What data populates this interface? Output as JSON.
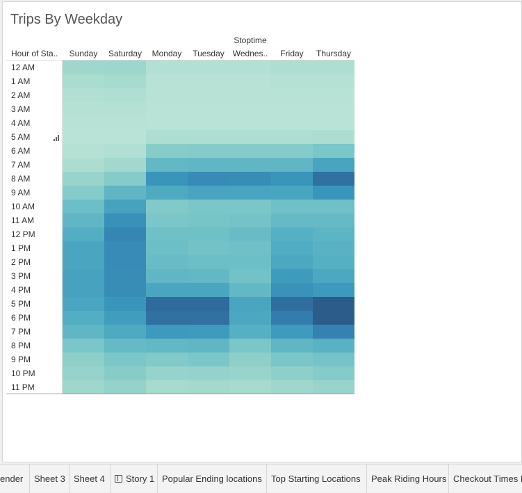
{
  "title": "Trips By Weekday",
  "colors": {
    "scale": [
      "#bce4d8",
      "#aadccf",
      "#8ecfca",
      "#6fc0c7",
      "#50acc2",
      "#3b97bc",
      "#347fb0",
      "#2e6798",
      "#2c5985"
    ]
  },
  "chart_data": {
    "type": "heatmap",
    "title": "Trips By Weekday",
    "column_group_label": "Stoptime",
    "row_header": "Hour of Sta..",
    "columns": [
      "Sunday",
      "Saturday",
      "Monday",
      "Tuesday",
      "Wednes..",
      "Friday",
      "Thursday"
    ],
    "rows": [
      "12 AM",
      "1 AM",
      "2 AM",
      "3 AM",
      "4 AM",
      "5 AM",
      "6 AM",
      "7 AM",
      "8 AM",
      "9 AM",
      "10 AM",
      "11 AM",
      "12 PM",
      "1 PM",
      "2 PM",
      "3 PM",
      "4 PM",
      "5 PM",
      "6 PM",
      "7 PM",
      "8 PM",
      "9 PM",
      "10 PM",
      "11 PM"
    ],
    "intensity_scale": [
      0,
      8
    ],
    "values": [
      [
        1.4,
        1.5,
        0.5,
        0.5,
        0.5,
        0.8,
        0.8
      ],
      [
        1.0,
        1.1,
        0.3,
        0.3,
        0.3,
        0.4,
        0.4
      ],
      [
        0.6,
        0.7,
        0.2,
        0.2,
        0.2,
        0.2,
        0.2
      ],
      [
        0.4,
        0.4,
        0.1,
        0.1,
        0.1,
        0.1,
        0.1
      ],
      [
        0.2,
        0.2,
        0.1,
        0.1,
        0.1,
        0.1,
        0.1
      ],
      [
        0.1,
        0.1,
        0.8,
        0.8,
        0.8,
        0.8,
        0.9
      ],
      [
        0.4,
        0.6,
        2.2,
        2.3,
        2.3,
        2.3,
        2.6
      ],
      [
        0.9,
        1.3,
        3.4,
        3.5,
        3.5,
        3.5,
        4.4
      ],
      [
        1.6,
        2.3,
        5.1,
        5.5,
        5.4,
        5.1,
        6.6
      ],
      [
        2.3,
        3.5,
        4.1,
        4.4,
        4.4,
        4.3,
        5.1
      ],
      [
        3.1,
        4.5,
        2.4,
        2.6,
        2.6,
        3.0,
        3.0
      ],
      [
        3.5,
        5.3,
        2.6,
        2.7,
        2.8,
        3.3,
        3.3
      ],
      [
        3.9,
        5.7,
        3.0,
        3.0,
        3.2,
        3.8,
        3.6
      ],
      [
        4.3,
        5.5,
        3.1,
        2.9,
        3.0,
        4.0,
        3.7
      ],
      [
        4.3,
        5.5,
        3.2,
        3.1,
        3.1,
        4.2,
        3.8
      ],
      [
        4.5,
        5.4,
        3.5,
        3.4,
        2.9,
        4.8,
        4.2
      ],
      [
        4.5,
        5.4,
        4.3,
        4.3,
        3.4,
        5.2,
        4.9
      ],
      [
        4.3,
        5.1,
        6.8,
        6.8,
        4.3,
        6.7,
        7.8
      ],
      [
        3.9,
        4.7,
        6.6,
        6.6,
        4.2,
        6.1,
        7.8
      ],
      [
        3.5,
        4.1,
        4.9,
        4.8,
        3.8,
        4.8,
        5.9
      ],
      [
        2.6,
        3.3,
        3.4,
        3.5,
        2.6,
        3.5,
        3.7
      ],
      [
        2.0,
        2.6,
        2.4,
        2.6,
        2.0,
        2.6,
        2.8
      ],
      [
        1.7,
        2.2,
        1.7,
        1.8,
        1.6,
        2.0,
        2.3
      ],
      [
        1.4,
        1.8,
        1.1,
        1.2,
        1.1,
        1.4,
        1.6
      ]
    ]
  },
  "tabs": [
    {
      "label": "ender"
    },
    {
      "label": "Sheet 3"
    },
    {
      "label": "Sheet 4"
    },
    {
      "label": "Story 1",
      "icon": "story-icon"
    },
    {
      "label": "Popular Ending locations"
    },
    {
      "label": "Top Starting Locations"
    },
    {
      "label": "Peak Riding Hours"
    },
    {
      "label": "Checkout Times F"
    }
  ]
}
